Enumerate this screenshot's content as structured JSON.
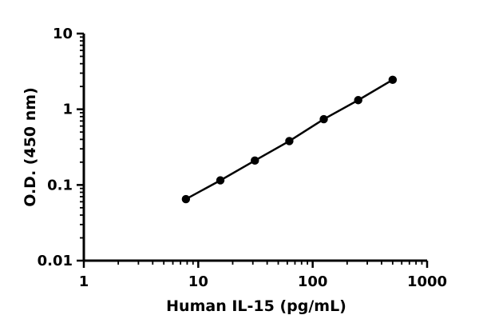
{
  "chart_data": {
    "type": "scatter",
    "x_scale": "log",
    "y_scale": "log",
    "xlabel": "Human IL-15 (pg/mL)",
    "ylabel": "O.D. (450 nm)",
    "xlim": [
      1,
      1000
    ],
    "ylim": [
      0.01,
      10
    ],
    "x_ticks": [
      "1",
      "10",
      "100",
      "1000"
    ],
    "y_ticks": [
      "0.01",
      "0.1",
      "1",
      "10"
    ],
    "grid": false,
    "fit_line": true,
    "series": [
      {
        "x": [
          7.8,
          15.6,
          31.25,
          62.5,
          125,
          250,
          500
        ],
        "y": [
          0.065,
          0.115,
          0.21,
          0.38,
          0.74,
          1.32,
          2.45
        ]
      }
    ]
  }
}
